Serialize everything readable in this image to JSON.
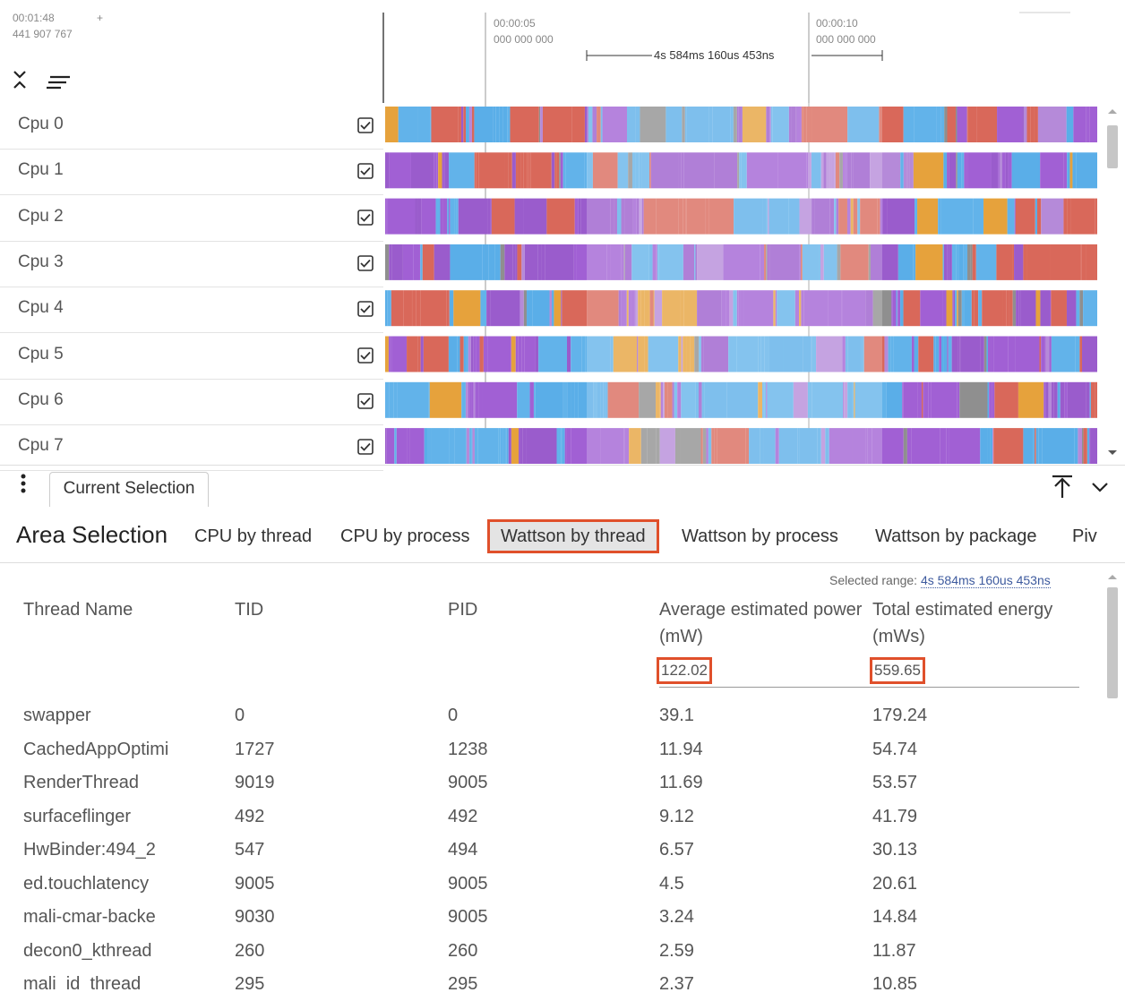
{
  "timeline": {
    "start_time": "00:01:48",
    "start_plus": "+",
    "start_ns": "441 907 767",
    "ticks": [
      {
        "time": "00:00:05",
        "ns": "000 000 000"
      },
      {
        "time": "00:00:10",
        "ns": "000 000 000"
      }
    ],
    "span_label": "4s 584ms 160us 453ns"
  },
  "tracks": [
    "Cpu 0",
    "Cpu 1",
    "Cpu 2",
    "Cpu 3",
    "Cpu 4",
    "Cpu 5",
    "Cpu 6",
    "Cpu 7"
  ],
  "bottom_tab": "Current Selection",
  "panel": {
    "title": "Area Selection",
    "tabs": [
      "CPU by thread",
      "CPU by process",
      "Wattson by thread",
      "Wattson by process",
      "Wattson by package",
      "Piv"
    ]
  },
  "table": {
    "selected_range_label": "Selected range:",
    "selected_range": "4s 584ms 160us 453ns",
    "columns": [
      "Thread Name",
      "TID",
      "PID",
      "Average estimated power (mW)",
      "Total estimated energy (mWs)"
    ],
    "totals": [
      "122.02",
      "559.65"
    ],
    "rows": [
      [
        "swapper",
        "0",
        "0",
        "39.1",
        "179.24"
      ],
      [
        "CachedAppOptimi",
        "1727",
        "1238",
        "11.94",
        "54.74"
      ],
      [
        "RenderThread",
        "9019",
        "9005",
        "11.69",
        "53.57"
      ],
      [
        "surfaceflinger",
        "492",
        "492",
        "9.12",
        "41.79"
      ],
      [
        "HwBinder:494_2",
        "547",
        "494",
        "6.57",
        "30.13"
      ],
      [
        "ed.touchlatency",
        "9005",
        "9005",
        "4.5",
        "20.61"
      ],
      [
        "mali-cmar-backe",
        "9030",
        "9005",
        "3.24",
        "14.84"
      ],
      [
        "decon0_kthread",
        "260",
        "260",
        "2.59",
        "11.87"
      ],
      [
        "mali_id_thread",
        "295",
        "295",
        "2.37",
        "10.85"
      ]
    ]
  }
}
